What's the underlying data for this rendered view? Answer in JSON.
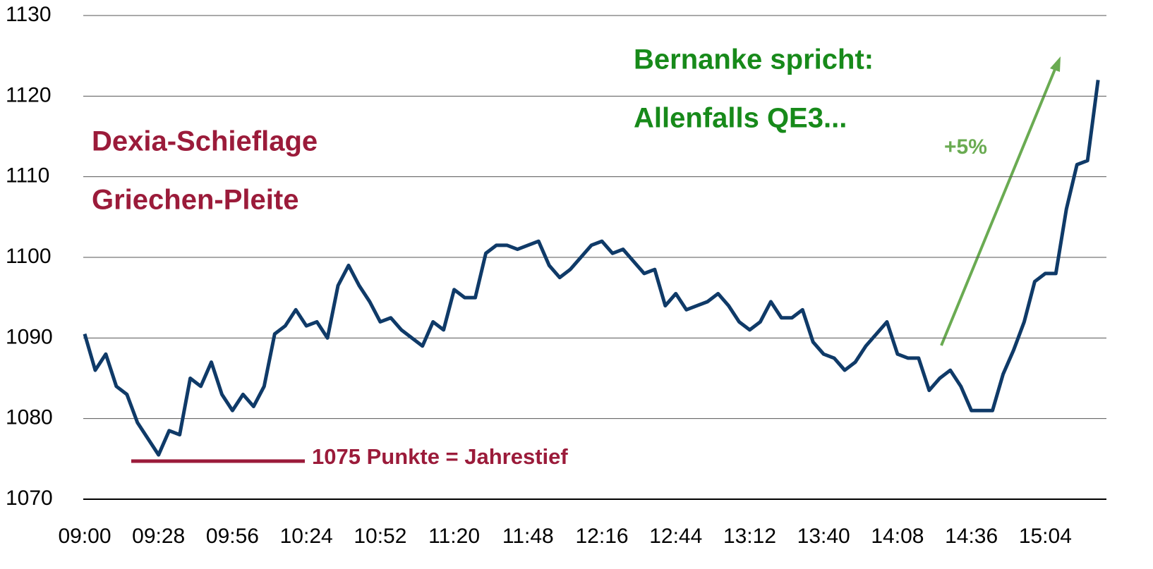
{
  "chart_data": {
    "type": "line",
    "categories": [
      "09:00",
      null,
      null,
      null,
      null,
      null,
      null,
      "09:28",
      null,
      null,
      null,
      null,
      null,
      null,
      "09:56",
      null,
      null,
      null,
      null,
      null,
      null,
      "10:24",
      null,
      null,
      null,
      null,
      null,
      null,
      "10:52",
      null,
      null,
      null,
      null,
      null,
      null,
      "11:20",
      null,
      null,
      null,
      null,
      null,
      null,
      "11:48",
      null,
      null,
      null,
      null,
      null,
      null,
      "12:16",
      null,
      null,
      null,
      null,
      null,
      null,
      "12:44",
      null,
      null,
      null,
      null,
      null,
      null,
      "13:12",
      null,
      null,
      null,
      null,
      null,
      null,
      "13:40",
      null,
      null,
      null,
      null,
      null,
      null,
      "14:08",
      null,
      null,
      null,
      null,
      null,
      null,
      "14:36",
      null,
      null,
      null,
      null,
      null,
      null,
      "15:04",
      null,
      null,
      null,
      null,
      null
    ],
    "series": [
      {
        "color": "#0f3a68",
        "values": [
          1090.5,
          1086,
          1088,
          1084,
          1083,
          1079.5,
          1077.5,
          1075.5,
          1078.5,
          1078,
          1085,
          1084,
          1087,
          1083,
          1081,
          1083,
          1081.5,
          1084,
          1090.5,
          1091.5,
          1093.5,
          1091.5,
          1092,
          1090,
          1096.5,
          1099,
          1096.5,
          1094.5,
          1092,
          1092.5,
          1091,
          1090,
          1089,
          1092,
          1091,
          1096,
          1095,
          1095,
          1100.5,
          1101.5,
          1101.5,
          1101,
          1101.5,
          1102,
          1099,
          1097.5,
          1098.5,
          1100,
          1101.5,
          1102,
          1100.5,
          1101,
          1099.5,
          1098,
          1098.5,
          1094,
          1095.5,
          1093.5,
          1094,
          1094.5,
          1095.5,
          1094,
          1092,
          1091,
          1092,
          1094.5,
          1092.5,
          1092.5,
          1093.5,
          1089.5,
          1088,
          1087.5,
          1086,
          1087,
          1089,
          1090.5,
          1092,
          1088,
          1087.5,
          1087.5,
          1083.5,
          1085,
          1086,
          1084,
          1081,
          1081,
          1081,
          1085.5,
          1088.5,
          1092,
          1097,
          1098,
          1098,
          1106,
          1111.5,
          1112,
          1122
        ]
      }
    ],
    "ylim": [
      1070,
      1130
    ],
    "yticks": [
      1070,
      1080,
      1090,
      1100,
      1110,
      1120,
      1130
    ],
    "grid": true,
    "annotations": [
      {
        "text": "Dexia-Schieflage",
        "color": "#9b1b3a"
      },
      {
        "text": "Griechen-Pleite",
        "color": "#9b1b3a"
      },
      {
        "text": "1075 Punkte = Jahrestief",
        "color": "#9b1b3a"
      },
      {
        "text": "Bernanke spricht:",
        "color": "#178a1a"
      },
      {
        "text": "Allenfalls QE3...",
        "color": "#178a1a"
      },
      {
        "text": "+5%",
        "color": "#6aab52"
      }
    ]
  }
}
